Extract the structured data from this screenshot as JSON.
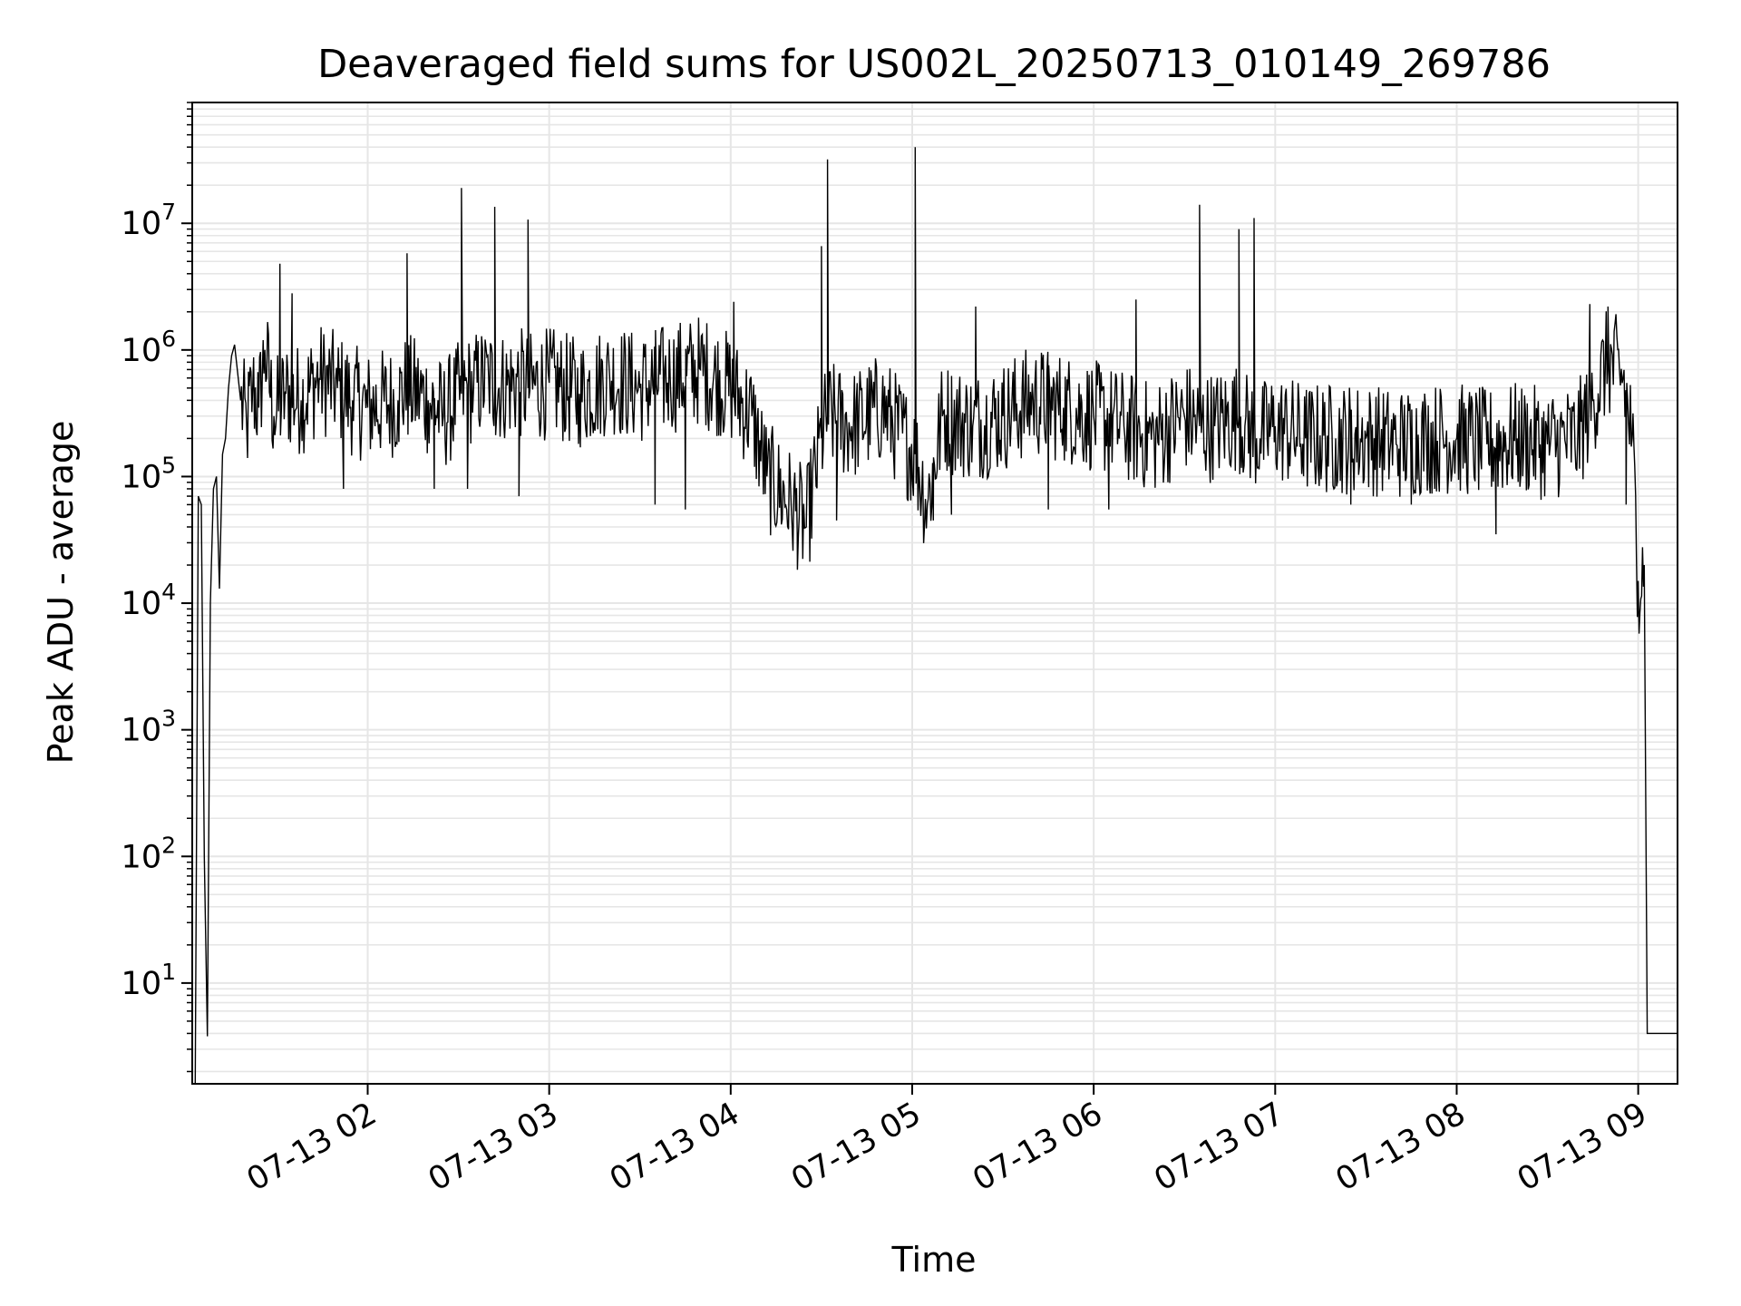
{
  "chart_data": {
    "type": "line",
    "title": "Deaveraged field sums for US002L_20250713_010149_269786",
    "xlabel": "Time",
    "ylabel": "Peak ADU - average",
    "yscale": "log",
    "ylim": [
      1.6,
      90000000
    ],
    "xlim": [
      "2025-07-13T01:02:00",
      "2025-07-13T09:13:00"
    ],
    "grid": {
      "major": true,
      "minor": true,
      "color": "#e6e6e6"
    },
    "line_color": "#000000",
    "x_ticks": [
      {
        "value": "2025-07-13T02:00:00",
        "label": "07-13 02"
      },
      {
        "value": "2025-07-13T03:00:00",
        "label": "07-13 03"
      },
      {
        "value": "2025-07-13T04:00:00",
        "label": "07-13 04"
      },
      {
        "value": "2025-07-13T05:00:00",
        "label": "07-13 05"
      },
      {
        "value": "2025-07-13T06:00:00",
        "label": "07-13 06"
      },
      {
        "value": "2025-07-13T07:00:00",
        "label": "07-13 07"
      },
      {
        "value": "2025-07-13T08:00:00",
        "label": "07-13 08"
      },
      {
        "value": "2025-07-13T09:00:00",
        "label": "07-13 09"
      }
    ],
    "y_ticks": [
      {
        "value": 10,
        "base": "10",
        "exp": "1"
      },
      {
        "value": 100,
        "base": "10",
        "exp": "2"
      },
      {
        "value": 1000,
        "base": "10",
        "exp": "3"
      },
      {
        "value": 10000,
        "base": "10",
        "exp": "4"
      },
      {
        "value": 100000,
        "base": "10",
        "exp": "5"
      },
      {
        "value": 1000000,
        "base": "10",
        "exp": "6"
      },
      {
        "value": 10000000,
        "base": "10",
        "exp": "7"
      }
    ],
    "series": [
      {
        "x": [
          "2025-07-13T01:03:00",
          "2025-07-13T01:04:00",
          "2025-07-13T01:05:00",
          "2025-07-13T01:06:00",
          "2025-07-13T01:07:00",
          "2025-07-13T01:08:00",
          "2025-07-13T01:09:00",
          "2025-07-13T01:10:00",
          "2025-07-13T01:11:00",
          "2025-07-13T01:12:00",
          "2025-07-13T01:13:00",
          "2025-07-13T01:14:00",
          "2025-07-13T01:15:00",
          "2025-07-13T01:16:00",
          "2025-07-13T01:18:00",
          "2025-07-13T01:20:00",
          "2025-07-13T01:22:00",
          "2025-07-13T01:24:00",
          "2025-07-13T01:26:00",
          "2025-07-13T01:29:00",
          "2025-07-13T01:33:00",
          "2025-07-13T01:38:00",
          "2025-07-13T01:44:00",
          "2025-07-13T01:50:00",
          "2025-07-13T01:55:00",
          "2025-07-13T02:00:00",
          "2025-07-13T02:10:00",
          "2025-07-13T02:13:00",
          "2025-07-13T02:20:00",
          "2025-07-13T02:25:00",
          "2025-07-13T02:31:00",
          "2025-07-13T02:35:00",
          "2025-07-13T02:40:00",
          "2025-07-13T02:42:00",
          "2025-07-13T02:50:00",
          "2025-07-13T02:53:00",
          "2025-07-13T03:00:00",
          "2025-07-13T03:10:00",
          "2025-07-13T03:20:00",
          "2025-07-13T03:30:00",
          "2025-07-13T03:40:00",
          "2025-07-13T03:50:00",
          "2025-07-13T04:00:00",
          "2025-07-13T04:07:00",
          "2025-07-13T04:12:00",
          "2025-07-13T04:20:00",
          "2025-07-13T04:25:00",
          "2025-07-13T04:30:00",
          "2025-07-13T04:32:00",
          "2025-07-13T04:40:00",
          "2025-07-13T04:50:00",
          "2025-07-13T05:01:00",
          "2025-07-13T05:05:00",
          "2025-07-13T05:10:00",
          "2025-07-13T05:20:00",
          "2025-07-13T05:30:00",
          "2025-07-13T05:40:00",
          "2025-07-13T05:50:00",
          "2025-07-13T06:00:00",
          "2025-07-13T06:10:00",
          "2025-07-13T06:20:00",
          "2025-07-13T06:30:00",
          "2025-07-13T06:35:00",
          "2025-07-13T06:40:00",
          "2025-07-13T06:48:00",
          "2025-07-13T06:50:00",
          "2025-07-13T06:55:00",
          "2025-07-13T07:00:00",
          "2025-07-13T07:10:00",
          "2025-07-13T07:20:00",
          "2025-07-13T07:30:00",
          "2025-07-13T07:40:00",
          "2025-07-13T07:50:00",
          "2025-07-13T08:00:00",
          "2025-07-13T08:10:00",
          "2025-07-13T08:20:00",
          "2025-07-13T08:30:00",
          "2025-07-13T08:40:00",
          "2025-07-13T08:45:00",
          "2025-07-13T08:50:00",
          "2025-07-13T08:55:00",
          "2025-07-13T08:58:00",
          "2025-07-13T09:00:00",
          "2025-07-13T09:02:00",
          "2025-07-13T09:03:00",
          "2025-07-13T09:13:00"
        ],
        "y": [
          1.6,
          70000,
          60000,
          100,
          3.8,
          10000,
          80000,
          100000,
          13000,
          150000,
          200000,
          500000,
          900000,
          1100000,
          400000,
          250000,
          500000,
          350000,
          1000000,
          300000,
          450000,
          400000,
          600000,
          500000,
          400000,
          350000,
          400000,
          500000,
          400000,
          300000,
          450000,
          500000,
          600000,
          500000,
          550000,
          500000,
          550000,
          450000,
          600000,
          500000,
          600000,
          700000,
          500000,
          300000,
          100000,
          60000,
          40000,
          200000,
          300000,
          250000,
          350000,
          150000,
          60000,
          300000,
          250000,
          300000,
          400000,
          350000,
          300000,
          250000,
          200000,
          300000,
          250000,
          250000,
          300000,
          250000,
          200000,
          250000,
          200000,
          200000,
          200000,
          180000,
          200000,
          200000,
          180000,
          200000,
          180000,
          200000,
          400000,
          800000,
          600000,
          200000,
          15000,
          20000,
          4,
          4
        ]
      }
    ],
    "spikes": [
      {
        "x": "2025-07-13T01:31:00",
        "y": 4800000
      },
      {
        "x": "2025-07-13T01:35:00",
        "y": 2800000
      },
      {
        "x": "2025-07-13T02:13:00",
        "y": 5800000
      },
      {
        "x": "2025-07-13T02:31:00",
        "y": 19000000
      },
      {
        "x": "2025-07-13T02:42:00",
        "y": 13500000
      },
      {
        "x": "2025-07-13T02:53:00",
        "y": 10700000
      },
      {
        "x": "2025-07-13T04:01:00",
        "y": 2400000
      },
      {
        "x": "2025-07-13T04:30:00",
        "y": 6600000
      },
      {
        "x": "2025-07-13T04:32:00",
        "y": 32000000
      },
      {
        "x": "2025-07-13T05:01:00",
        "y": 40000000
      },
      {
        "x": "2025-07-13T05:21:00",
        "y": 2200000
      },
      {
        "x": "2025-07-13T06:14:00",
        "y": 2500000
      },
      {
        "x": "2025-07-13T06:35:00",
        "y": 14000000
      },
      {
        "x": "2025-07-13T06:48:00",
        "y": 9000000
      },
      {
        "x": "2025-07-13T06:53:00",
        "y": 11000000
      },
      {
        "x": "2025-07-13T08:44:00",
        "y": 2300000
      },
      {
        "x": "2025-07-13T08:50:00",
        "y": 2200000
      }
    ],
    "dips": [
      {
        "x": "2025-07-13T01:52:00",
        "y": 80000
      },
      {
        "x": "2025-07-13T02:22:00",
        "y": 80000
      },
      {
        "x": "2025-07-13T02:33:00",
        "y": 80000
      },
      {
        "x": "2025-07-13T02:50:00",
        "y": 70000
      },
      {
        "x": "2025-07-13T03:35:00",
        "y": 60000
      },
      {
        "x": "2025-07-13T03:45:00",
        "y": 55000
      },
      {
        "x": "2025-07-13T04:22:00",
        "y": 35000
      },
      {
        "x": "2025-07-13T04:35:00",
        "y": 45000
      },
      {
        "x": "2025-07-13T05:07:00",
        "y": 45000
      },
      {
        "x": "2025-07-13T05:13:00",
        "y": 50000
      },
      {
        "x": "2025-07-13T05:45:00",
        "y": 55000
      },
      {
        "x": "2025-07-13T06:05:00",
        "y": 55000
      },
      {
        "x": "2025-07-13T07:25:00",
        "y": 60000
      },
      {
        "x": "2025-07-13T07:45:00",
        "y": 60000
      },
      {
        "x": "2025-07-13T08:13:00",
        "y": 35000
      },
      {
        "x": "2025-07-13T08:56:00",
        "y": 60000
      }
    ]
  }
}
